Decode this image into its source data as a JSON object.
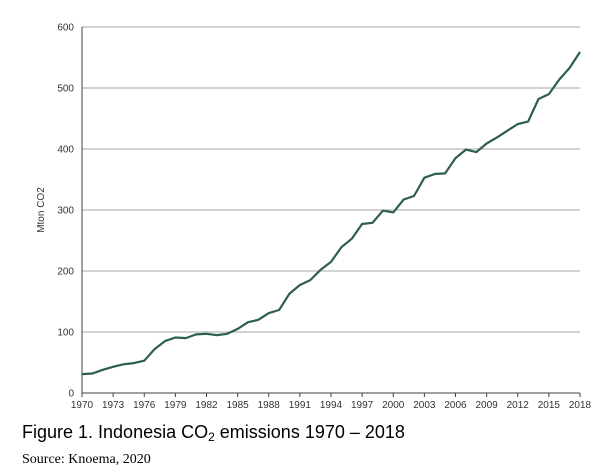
{
  "chart_data": {
    "type": "line",
    "title": "",
    "xlabel": "",
    "ylabel": "Mton CO2",
    "xlim": [
      1970,
      2018
    ],
    "ylim": [
      0,
      600
    ],
    "y_ticks": [
      0,
      100,
      200,
      300,
      400,
      500,
      600
    ],
    "x_ticks": [
      1970,
      1973,
      1976,
      1979,
      1982,
      1985,
      1988,
      1991,
      1994,
      1997,
      2000,
      2003,
      2006,
      2009,
      2012,
      2015,
      2018
    ],
    "grid": "horizontal",
    "line_color": "#2e5e4e",
    "grid_color": "#a6a6a6",
    "series": [
      {
        "x": [
          1970,
          1971,
          1972,
          1973,
          1974,
          1975,
          1976,
          1977,
          1978,
          1979,
          1980,
          1981,
          1982,
          1983,
          1984,
          1985,
          1986,
          1987,
          1988,
          1989,
          1990,
          1991,
          1992,
          1993,
          1994,
          1995,
          1996,
          1997,
          1998,
          1999,
          2000,
          2001,
          2002,
          2003,
          2004,
          2005,
          2006,
          2007,
          2008,
          2009,
          2010,
          2011,
          2012,
          2013,
          2014,
          2015,
          2016,
          2017,
          2018
        ],
        "values": [
          31,
          32,
          38,
          43,
          47,
          49,
          53,
          72,
          85,
          91,
          90,
          96,
          97,
          95,
          97,
          105,
          116,
          120,
          131,
          136,
          163,
          177,
          185,
          202,
          215,
          239,
          253,
          277,
          279,
          299,
          296,
          317,
          323,
          353,
          359,
          360,
          385,
          399,
          395,
          409,
          419,
          430,
          441,
          445,
          482,
          490,
          514,
          533,
          559
        ]
      }
    ]
  },
  "caption": {
    "prefix": "Figure 1. Indonesia CO",
    "subscript": "2",
    "suffix": " emissions 1970 – 2018"
  },
  "source": "Source: Knoema, 2020"
}
